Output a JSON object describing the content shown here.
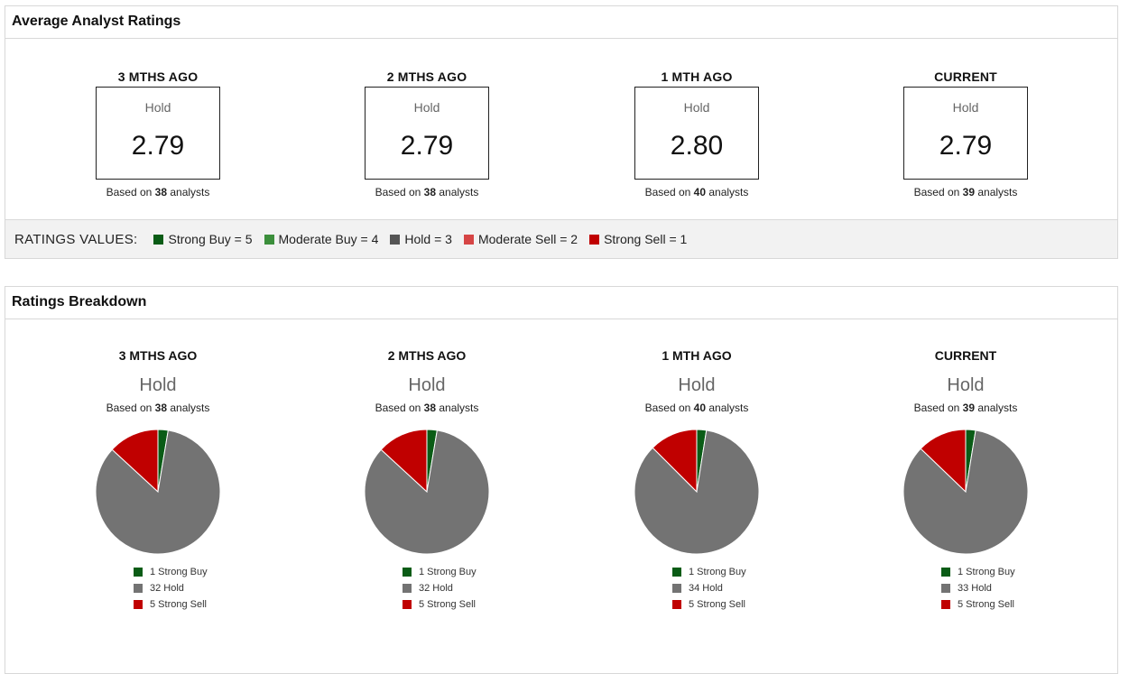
{
  "avg_section": {
    "title": "Average Analyst Ratings",
    "periods": [
      {
        "label": "3 MTHS AGO",
        "rating": "Hold",
        "value": "2.79",
        "based_prefix": "Based on ",
        "analysts": "38",
        "based_suffix": " analysts"
      },
      {
        "label": "2 MTHS AGO",
        "rating": "Hold",
        "value": "2.79",
        "based_prefix": "Based on ",
        "analysts": "38",
        "based_suffix": " analysts"
      },
      {
        "label": "1 MTH AGO",
        "rating": "Hold",
        "value": "2.80",
        "based_prefix": "Based on ",
        "analysts": "40",
        "based_suffix": " analysts"
      },
      {
        "label": "CURRENT",
        "rating": "Hold",
        "value": "2.79",
        "based_prefix": "Based on ",
        "analysts": "39",
        "based_suffix": " analysts"
      }
    ],
    "ratings_values": {
      "title": "RATINGS VALUES:",
      "items": [
        {
          "label": "Strong Buy = 5",
          "color": "#0a5c16"
        },
        {
          "label": "Moderate Buy = 4",
          "color": "#3c8f3c"
        },
        {
          "label": "Hold = 3",
          "color": "#555555"
        },
        {
          "label": "Moderate Sell = 2",
          "color": "#d64545"
        },
        {
          "label": "Strong Sell = 1",
          "color": "#c00000"
        }
      ]
    }
  },
  "breakdown_section": {
    "title": "Ratings Breakdown",
    "periods": [
      {
        "label": "3 MTHS AGO",
        "rating": "Hold",
        "based_prefix": "Based on ",
        "analysts": "38",
        "based_suffix": " analysts",
        "legend": [
          "1 Strong Buy",
          "32 Hold",
          "5 Strong Sell"
        ]
      },
      {
        "label": "2 MTHS AGO",
        "rating": "Hold",
        "based_prefix": "Based on ",
        "analysts": "38",
        "based_suffix": " analysts",
        "legend": [
          "1 Strong Buy",
          "32 Hold",
          "5 Strong Sell"
        ]
      },
      {
        "label": "1 MTH AGO",
        "rating": "Hold",
        "based_prefix": "Based on ",
        "analysts": "40",
        "based_suffix": " analysts",
        "legend": [
          "1 Strong Buy",
          "34 Hold",
          "5 Strong Sell"
        ]
      },
      {
        "label": "CURRENT",
        "rating": "Hold",
        "based_prefix": "Based on ",
        "analysts": "39",
        "based_suffix": " analysts",
        "legend": [
          "1 Strong Buy",
          "33 Hold",
          "5 Strong Sell"
        ]
      }
    ]
  },
  "chart_data": [
    {
      "type": "pie",
      "title": "3 MTHS AGO",
      "labels": [
        "Strong Buy",
        "Hold",
        "Strong Sell"
      ],
      "values": [
        1,
        32,
        5
      ],
      "colors": [
        "#0a5c16",
        "#737373",
        "#c00000"
      ]
    },
    {
      "type": "pie",
      "title": "2 MTHS AGO",
      "labels": [
        "Strong Buy",
        "Hold",
        "Strong Sell"
      ],
      "values": [
        1,
        32,
        5
      ],
      "colors": [
        "#0a5c16",
        "#737373",
        "#c00000"
      ]
    },
    {
      "type": "pie",
      "title": "1 MTH AGO",
      "labels": [
        "Strong Buy",
        "Hold",
        "Strong Sell"
      ],
      "values": [
        1,
        34,
        5
      ],
      "colors": [
        "#0a5c16",
        "#737373",
        "#c00000"
      ]
    },
    {
      "type": "pie",
      "title": "CURRENT",
      "labels": [
        "Strong Buy",
        "Hold",
        "Strong Sell"
      ],
      "values": [
        1,
        33,
        5
      ],
      "colors": [
        "#0a5c16",
        "#737373",
        "#c00000"
      ]
    }
  ]
}
